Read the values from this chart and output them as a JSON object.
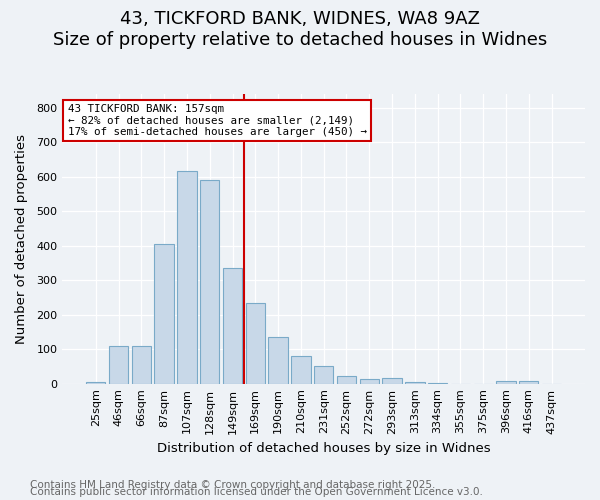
{
  "title": "43, TICKFORD BANK, WIDNES, WA8 9AZ",
  "subtitle": "Size of property relative to detached houses in Widnes",
  "xlabel": "Distribution of detached houses by size in Widnes",
  "ylabel": "Number of detached properties",
  "bar_labels": [
    "25sqm",
    "46sqm",
    "66sqm",
    "87sqm",
    "107sqm",
    "128sqm",
    "149sqm",
    "169sqm",
    "190sqm",
    "210sqm",
    "231sqm",
    "252sqm",
    "272sqm",
    "293sqm",
    "313sqm",
    "334sqm",
    "355sqm",
    "375sqm",
    "396sqm",
    "416sqm",
    "437sqm"
  ],
  "bar_values": [
    5,
    110,
    110,
    405,
    615,
    590,
    335,
    235,
    135,
    80,
    50,
    22,
    15,
    17,
    5,
    3,
    0,
    0,
    7,
    8,
    0
  ],
  "bar_color": "#c8d8e8",
  "bar_edge_color": "#7aaac8",
  "annotation_line1": "43 TICKFORD BANK: 157sqm",
  "annotation_line2": "← 82% of detached houses are smaller (2,149)",
  "annotation_line3": "17% of semi-detached houses are larger (450) →",
  "vline_color": "#cc0000",
  "annotation_box_edge": "#cc0000",
  "footnote1": "Contains HM Land Registry data © Crown copyright and database right 2025.",
  "footnote2": "Contains public sector information licensed under the Open Government Licence v3.0.",
  "ylim": [
    0,
    840
  ],
  "yticks": [
    0,
    100,
    200,
    300,
    400,
    500,
    600,
    700,
    800
  ],
  "background_color": "#eef2f6",
  "grid_color": "#ffffff",
  "title_fontsize": 13,
  "axis_label_fontsize": 9.5,
  "tick_fontsize": 8,
  "footnote_fontsize": 7.5
}
